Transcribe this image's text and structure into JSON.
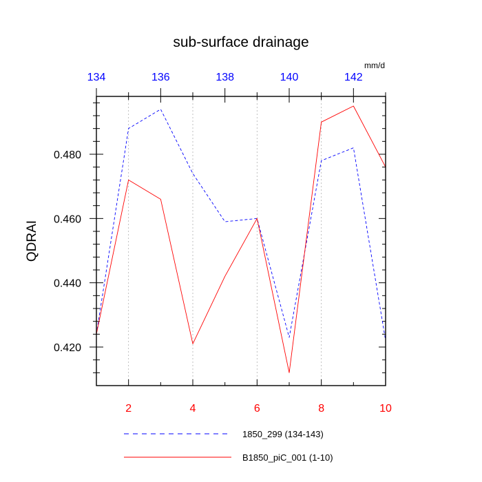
{
  "chart_data": {
    "type": "line",
    "title": "sub-surface drainage",
    "units": "mm/d",
    "ylabel": "QDRAI",
    "xlabel": "",
    "ylim": [
      0.408,
      0.498
    ],
    "y_ticks": [
      0.42,
      0.44,
      0.46,
      0.48
    ],
    "y_tick_labels": [
      "0.420",
      "0.440",
      "0.460",
      "0.480"
    ],
    "bottom_axis": {
      "range": [
        1,
        10
      ],
      "ticks": [
        2,
        4,
        6,
        8,
        10
      ],
      "tick_labels": [
        "2",
        "4",
        "6",
        "8",
        "10"
      ],
      "color": "#ff0000"
    },
    "top_axis": {
      "range": [
        134,
        143
      ],
      "ticks": [
        134,
        136,
        138,
        140,
        142
      ],
      "tick_labels": [
        "134",
        "136",
        "138",
        "140",
        "142"
      ],
      "color": "#0000ff"
    },
    "grid": "vertical-dotted",
    "legend_position": "bottom",
    "series": [
      {
        "name": "1850_299 (134-143)",
        "color": "#0000ff",
        "dash": "dashed",
        "axis": "top",
        "x": [
          134,
          135,
          136,
          137,
          138,
          139,
          140,
          141,
          142,
          143
        ],
        "values": [
          0.424,
          0.488,
          0.494,
          0.474,
          0.459,
          0.46,
          0.423,
          0.478,
          0.482,
          0.422
        ]
      },
      {
        "name": "B1850_piC_001 (1-10)",
        "color": "#ff0000",
        "dash": "solid",
        "axis": "bottom",
        "x": [
          1,
          2,
          3,
          4,
          5,
          6,
          7,
          8,
          9,
          10
        ],
        "values": [
          0.424,
          0.472,
          0.466,
          0.421,
          0.442,
          0.46,
          0.412,
          0.49,
          0.495,
          0.476
        ]
      }
    ]
  }
}
